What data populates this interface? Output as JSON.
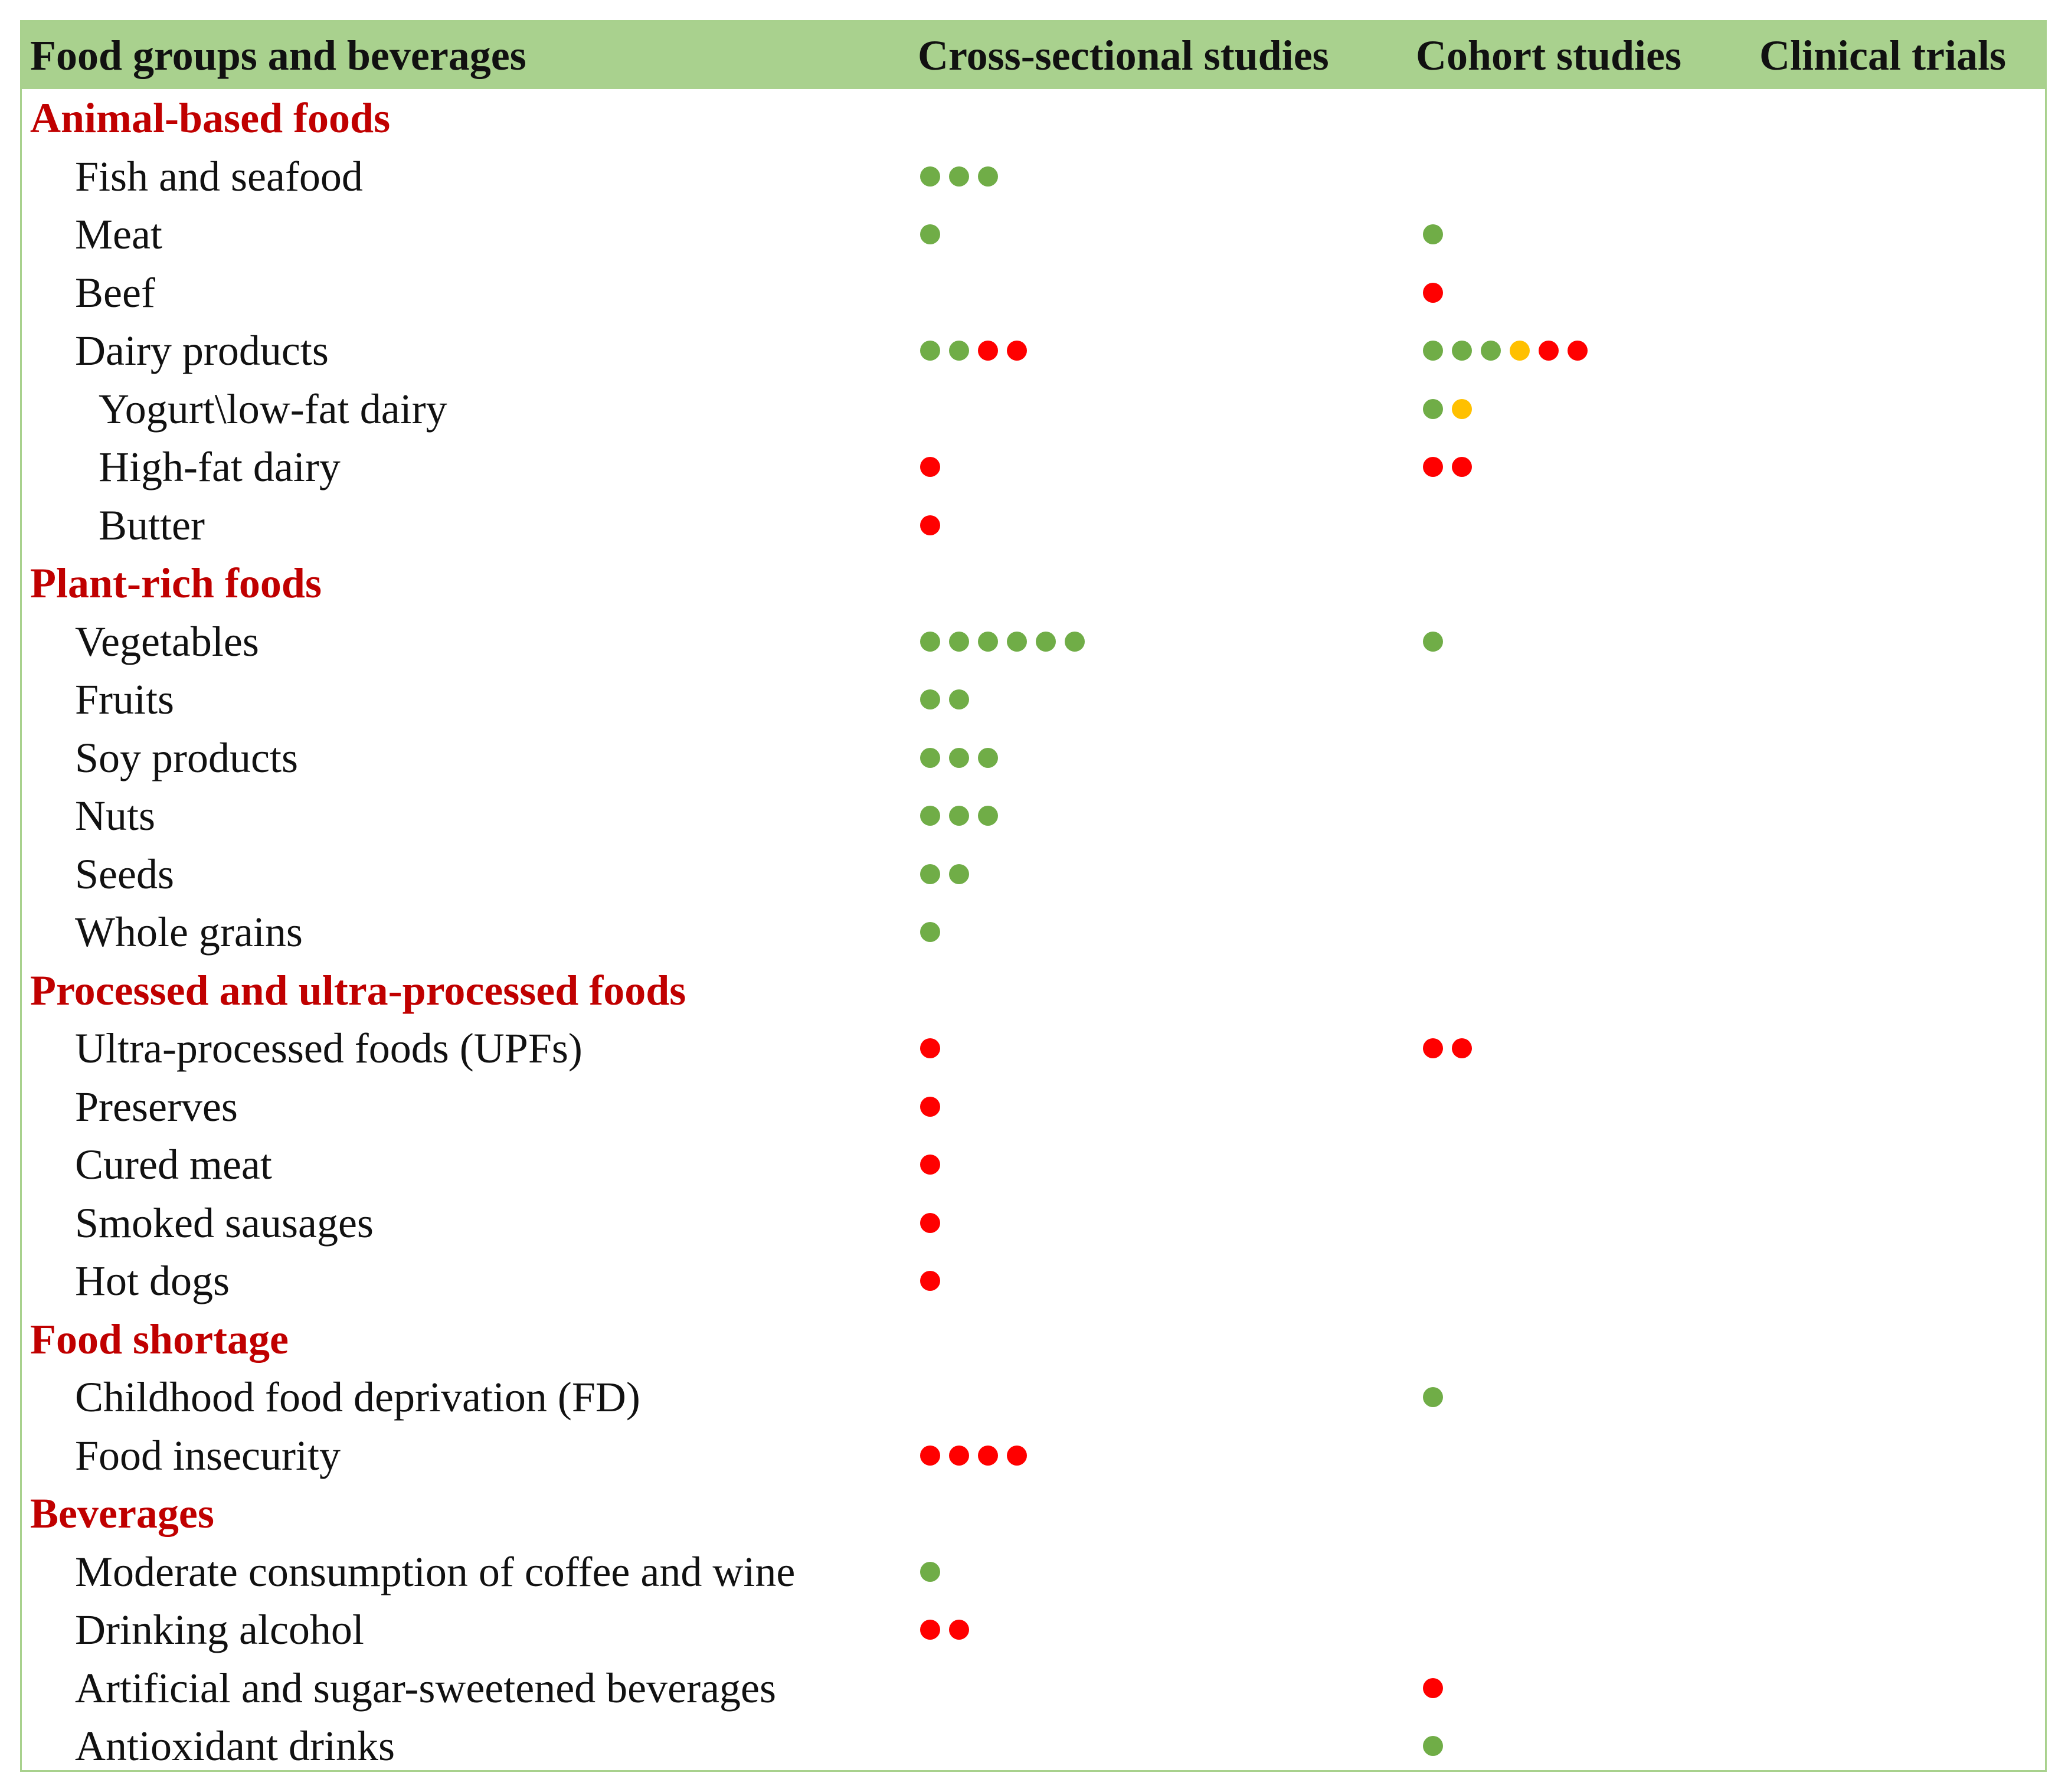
{
  "header": {
    "col0": "Food groups and beverages",
    "col1": "Cross-sectional studies",
    "col2": "Cohort studies",
    "col3": "Clinical trials"
  },
  "legend_colors": {
    "green": "#70ad47",
    "red": "#ff0000",
    "yellow": "#ffc000"
  },
  "rows": [
    {
      "type": "section",
      "label": "Animal-based foods"
    },
    {
      "type": "item",
      "level": 1,
      "label": "Fish and seafood",
      "cross": [
        "green",
        "green",
        "green"
      ],
      "cohort": [],
      "trials": []
    },
    {
      "type": "item",
      "level": 1,
      "label": "Meat",
      "cross": [
        "green"
      ],
      "cohort": [
        "green"
      ],
      "trials": []
    },
    {
      "type": "item",
      "level": 1,
      "label": "Beef",
      "cross": [],
      "cohort": [
        "red"
      ],
      "trials": []
    },
    {
      "type": "item",
      "level": 1,
      "label": "Dairy products",
      "cross": [
        "green",
        "green",
        "red",
        "red"
      ],
      "cohort": [
        "green",
        "green",
        "green",
        "yellow",
        "red",
        "red"
      ],
      "trials": []
    },
    {
      "type": "item",
      "level": 2,
      "label": "Yogurt\\low-fat dairy",
      "cross": [],
      "cohort": [
        "green",
        "yellow"
      ],
      "trials": []
    },
    {
      "type": "item",
      "level": 2,
      "label": "High-fat dairy",
      "cross": [
        "red"
      ],
      "cohort": [
        "red",
        "red"
      ],
      "trials": []
    },
    {
      "type": "item",
      "level": 2,
      "label": "Butter",
      "cross": [
        "red"
      ],
      "cohort": [],
      "trials": []
    },
    {
      "type": "section",
      "label": "Plant-rich foods"
    },
    {
      "type": "item",
      "level": 1,
      "label": "Vegetables",
      "cross": [
        "green",
        "green",
        "green",
        "green",
        "green",
        "green"
      ],
      "cohort": [
        "green"
      ],
      "trials": []
    },
    {
      "type": "item",
      "level": 1,
      "label": "Fruits",
      "cross": [
        "green",
        "green"
      ],
      "cohort": [],
      "trials": []
    },
    {
      "type": "item",
      "level": 1,
      "label": "Soy products",
      "cross": [
        "green",
        "green",
        "green"
      ],
      "cohort": [],
      "trials": []
    },
    {
      "type": "item",
      "level": 1,
      "label": "Nuts",
      "cross": [
        "green",
        "green",
        "green"
      ],
      "cohort": [],
      "trials": []
    },
    {
      "type": "item",
      "level": 1,
      "label": "Seeds",
      "cross": [
        "green",
        "green"
      ],
      "cohort": [],
      "trials": []
    },
    {
      "type": "item",
      "level": 1,
      "label": "Whole grains",
      "cross": [
        "green"
      ],
      "cohort": [],
      "trials": []
    },
    {
      "type": "section",
      "label": "Processed and ultra-processed foods"
    },
    {
      "type": "item",
      "level": 1,
      "label": "Ultra-processed foods (UPFs)",
      "cross": [
        "red"
      ],
      "cohort": [
        "red",
        "red"
      ],
      "trials": []
    },
    {
      "type": "item",
      "level": 1,
      "label": "Preserves",
      "cross": [
        "red"
      ],
      "cohort": [],
      "trials": []
    },
    {
      "type": "item",
      "level": 1,
      "label": "Cured meat",
      "cross": [
        "red"
      ],
      "cohort": [],
      "trials": []
    },
    {
      "type": "item",
      "level": 1,
      "label": "Smoked sausages",
      "cross": [
        "red"
      ],
      "cohort": [],
      "trials": []
    },
    {
      "type": "item",
      "level": 1,
      "label": "Hot dogs",
      "cross": [
        "red"
      ],
      "cohort": [],
      "trials": []
    },
    {
      "type": "section",
      "label": "Food shortage"
    },
    {
      "type": "item",
      "level": 1,
      "label": "Childhood food deprivation (FD)",
      "cross": [],
      "cohort": [
        "green"
      ],
      "trials": []
    },
    {
      "type": "item",
      "level": 1,
      "label": "Food insecurity",
      "cross": [
        "red",
        "red",
        "red",
        "red"
      ],
      "cohort": [],
      "trials": []
    },
    {
      "type": "section",
      "label": "Beverages"
    },
    {
      "type": "item",
      "level": 1,
      "label": "Moderate consumption of coffee and wine",
      "cross": [
        "green"
      ],
      "cohort": [],
      "trials": []
    },
    {
      "type": "item",
      "level": 1,
      "label": "Drinking alcohol",
      "cross": [
        "red",
        "red"
      ],
      "cohort": [],
      "trials": []
    },
    {
      "type": "item",
      "level": 1,
      "label": "Artificial and sugar-sweetened beverages",
      "cross": [],
      "cohort": [
        "red"
      ],
      "trials": []
    },
    {
      "type": "item",
      "level": 1,
      "label": "Antioxidant drinks",
      "cross": [],
      "cohort": [
        "green"
      ],
      "trials": []
    }
  ]
}
